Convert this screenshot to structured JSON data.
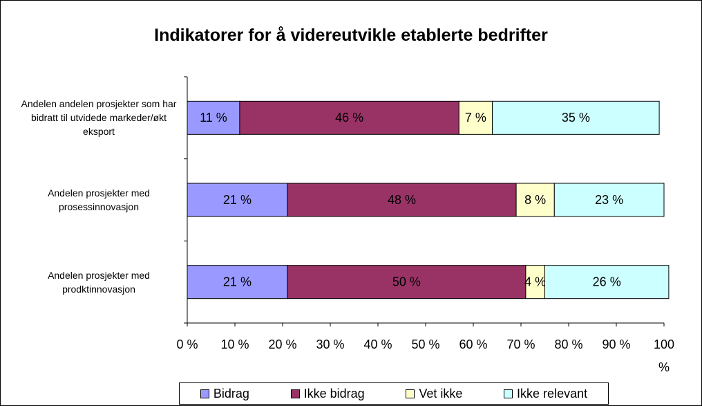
{
  "chart_data": {
    "type": "stacked-bar-horizontal",
    "title": "Indikatorer for å videreutvikle etablerte bedrifter",
    "categories": [
      "Andelen andelen prosjekter som har bidratt til utvidede markeder/økt eksport",
      "Andelen prosjekter med prosessinnovasjon",
      "Andelen prosjekter med prodktinnovasjon"
    ],
    "series": [
      {
        "name": "Bidrag",
        "color": "#9999ff",
        "values": [
          11,
          21,
          21
        ],
        "value_labels": [
          "11 %",
          "21 %",
          "21 %"
        ]
      },
      {
        "name": "Ikke bidrag",
        "color": "#993366",
        "values": [
          46,
          48,
          50
        ],
        "value_labels": [
          "46 %",
          "48 %",
          "50 %"
        ]
      },
      {
        "name": "Vet ikke",
        "color": "#ffffcc",
        "values": [
          7,
          8,
          4
        ],
        "value_labels": [
          "7 %",
          "8 %",
          "4 %"
        ]
      },
      {
        "name": "Ikke relevant",
        "color": "#ccffff",
        "values": [
          35,
          23,
          26
        ],
        "value_labels": [
          "35 %",
          "23 %",
          "26 %"
        ]
      }
    ],
    "xlim": [
      0,
      100
    ],
    "xticks": [
      {
        "value": 0,
        "label": "0 %"
      },
      {
        "value": 10,
        "label": "10 %"
      },
      {
        "value": 20,
        "label": "20 %"
      },
      {
        "value": 30,
        "label": "30 %"
      },
      {
        "value": 40,
        "label": "40 %"
      },
      {
        "value": 50,
        "label": "50 %"
      },
      {
        "value": 60,
        "label": "60 %"
      },
      {
        "value": 70,
        "label": "70 %"
      },
      {
        "value": 80,
        "label": "80 %"
      },
      {
        "value": 90,
        "label": "90 %"
      },
      {
        "value": 100,
        "label": "100 %"
      }
    ],
    "legend": "bottom"
  }
}
